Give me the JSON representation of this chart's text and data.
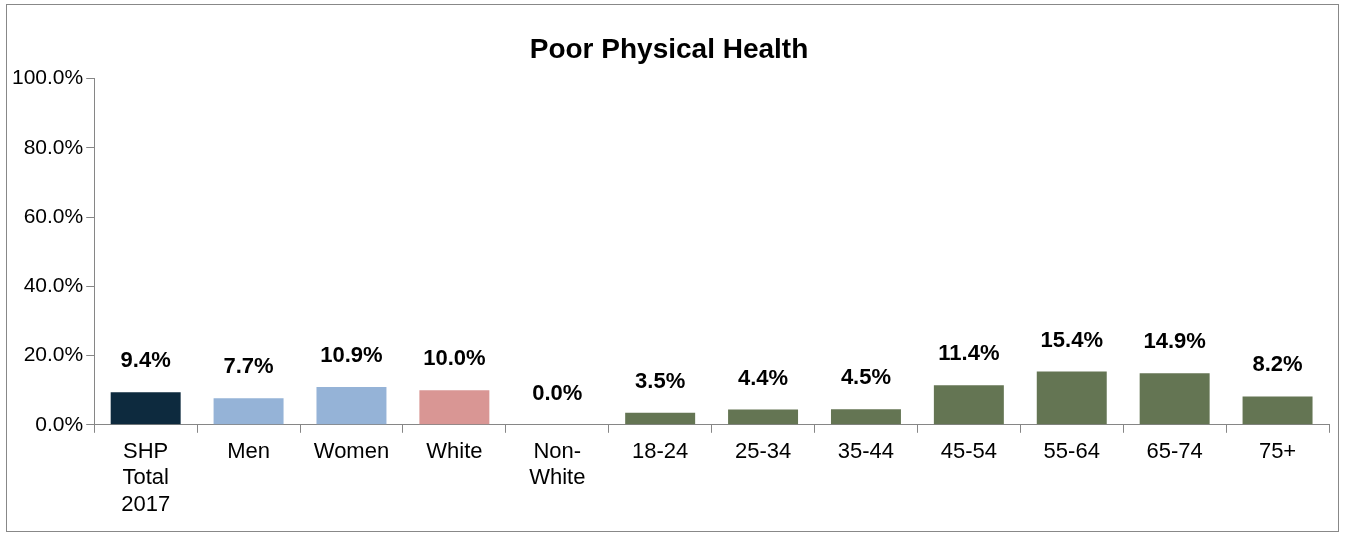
{
  "chart_data": {
    "type": "bar",
    "title": "Poor Physical Health",
    "categories": [
      "SHP Total 2017",
      "Men",
      "Women",
      "White",
      "Non-White",
      "18-24",
      "25-34",
      "35-44",
      "45-54",
      "55-64",
      "65-74",
      "75+"
    ],
    "values": [
      9.4,
      7.7,
      10.9,
      10.0,
      0.0,
      3.5,
      4.4,
      4.5,
      11.4,
      15.4,
      14.9,
      8.2
    ],
    "value_labels": [
      "9.4%",
      "7.7%",
      "10.9%",
      "10.0%",
      "0.0%",
      "3.5%",
      "4.4%",
      "4.5%",
      "11.4%",
      "15.4%",
      "14.9%",
      "8.2%"
    ],
    "colors": [
      "#0d2a3e",
      "#95b3d7",
      "#95b3d7",
      "#d99694",
      "#95b3d7",
      "#647553",
      "#647553",
      "#647553",
      "#647553",
      "#647553",
      "#647553",
      "#647553"
    ],
    "ylim": [
      0,
      100
    ],
    "yticks": [
      {
        "value": 0,
        "label": "0.0%"
      },
      {
        "value": 20,
        "label": "20.0%"
      },
      {
        "value": 40,
        "label": "40.0%"
      },
      {
        "value": 60,
        "label": "60.0%"
      },
      {
        "value": 80,
        "label": "80.0%"
      },
      {
        "value": 100,
        "label": "100.0%"
      }
    ],
    "grid": false,
    "legend": false
  }
}
